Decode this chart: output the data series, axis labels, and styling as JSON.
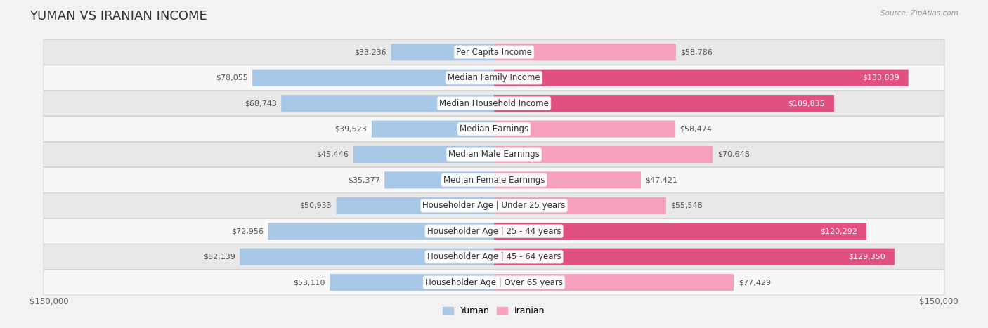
{
  "title": "YUMAN VS IRANIAN INCOME",
  "source": "Source: ZipAtlas.com",
  "categories": [
    "Per Capita Income",
    "Median Family Income",
    "Median Household Income",
    "Median Earnings",
    "Median Male Earnings",
    "Median Female Earnings",
    "Householder Age | Under 25 years",
    "Householder Age | 25 - 44 years",
    "Householder Age | 45 - 64 years",
    "Householder Age | Over 65 years"
  ],
  "yuman_values": [
    33236,
    78055,
    68743,
    39523,
    45446,
    35377,
    50933,
    72956,
    82139,
    53110
  ],
  "iranian_values": [
    58786,
    133839,
    109835,
    58474,
    70648,
    47421,
    55548,
    120292,
    129350,
    77429
  ],
  "max_val": 150000,
  "yuman_color_light": "#a8c8e8",
  "yuman_color_dark": "#5b9bd5",
  "iranian_color_light": "#f4a0be",
  "iranian_color_dark": "#e05080",
  "yuman_label": "Yuman",
  "iranian_label": "Iranian",
  "bg_color": "#f2f2f2",
  "row_color_odd": "#e8e8e8",
  "row_color_even": "#f8f8f8",
  "title_fontsize": 13,
  "label_fontsize": 8.5,
  "value_fontsize": 8,
  "dark_threshold": 90000,
  "white_value_color": "#ffffff",
  "dark_value_color": "#555555"
}
